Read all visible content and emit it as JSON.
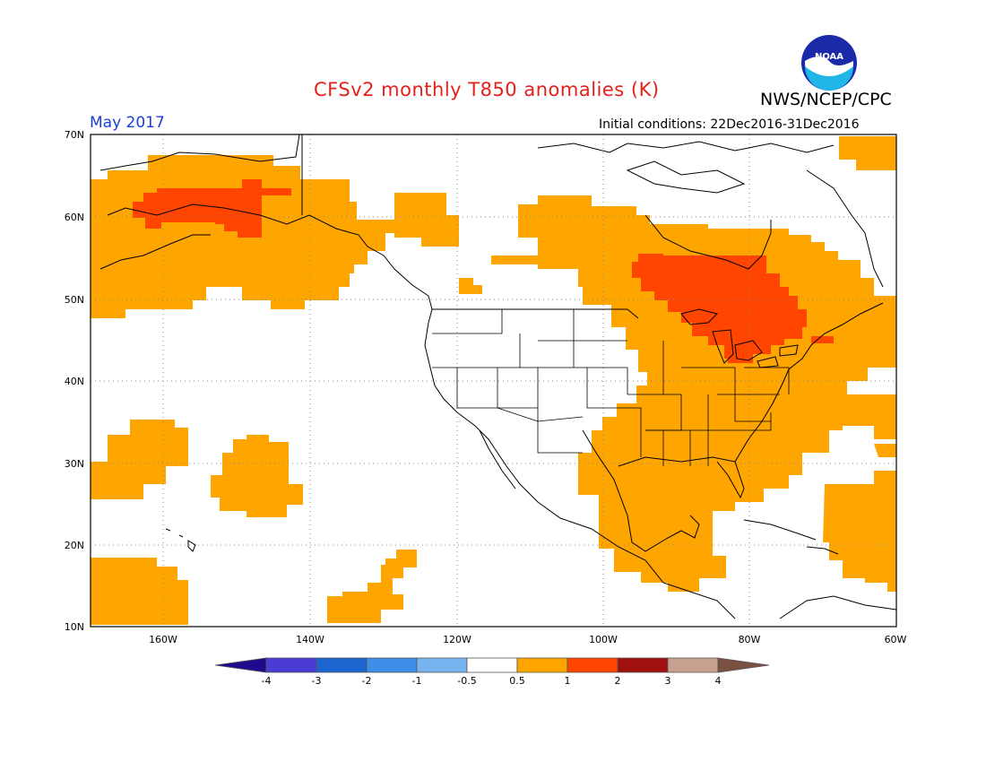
{
  "header": {
    "title": "CFSv2 monthly T850 anomalies (K)",
    "agency": "NWS/NCEP/CPC",
    "logo_text": "NOAA",
    "month": "May 2017",
    "initial_conditions": "Initial conditions: 22Dec2016-31Dec2016"
  },
  "map": {
    "lat_labels": [
      "70N",
      "60N",
      "50N",
      "40N",
      "30N",
      "20N",
      "10N"
    ],
    "lon_labels": [
      "160W",
      "140W",
      "120W",
      "100W",
      "80W",
      "60W"
    ]
  },
  "legend": {
    "labels": [
      "-4",
      "-3",
      "-2",
      "-1",
      "-0.5",
      "0.5",
      "1",
      "2",
      "3",
      "4"
    ],
    "colors": {
      "lt_m4": "#1e0a8c",
      "m4_m3": "#4a3cd2",
      "m3_m2": "#1c64d0",
      "m2_m1": "#3c8ee6",
      "m1_m05": "#78b4f0",
      "m05_05": "#ffffff",
      "05_1": "#ffa500",
      "1_2": "#ff4500",
      "2_3": "#a01010",
      "3_4": "#c8a090",
      "gt_4": "#7a5040"
    }
  },
  "anomaly_colors": {
    "warm_0.5_1": "#ffa500",
    "warm_1_2": "#ff4500"
  }
}
